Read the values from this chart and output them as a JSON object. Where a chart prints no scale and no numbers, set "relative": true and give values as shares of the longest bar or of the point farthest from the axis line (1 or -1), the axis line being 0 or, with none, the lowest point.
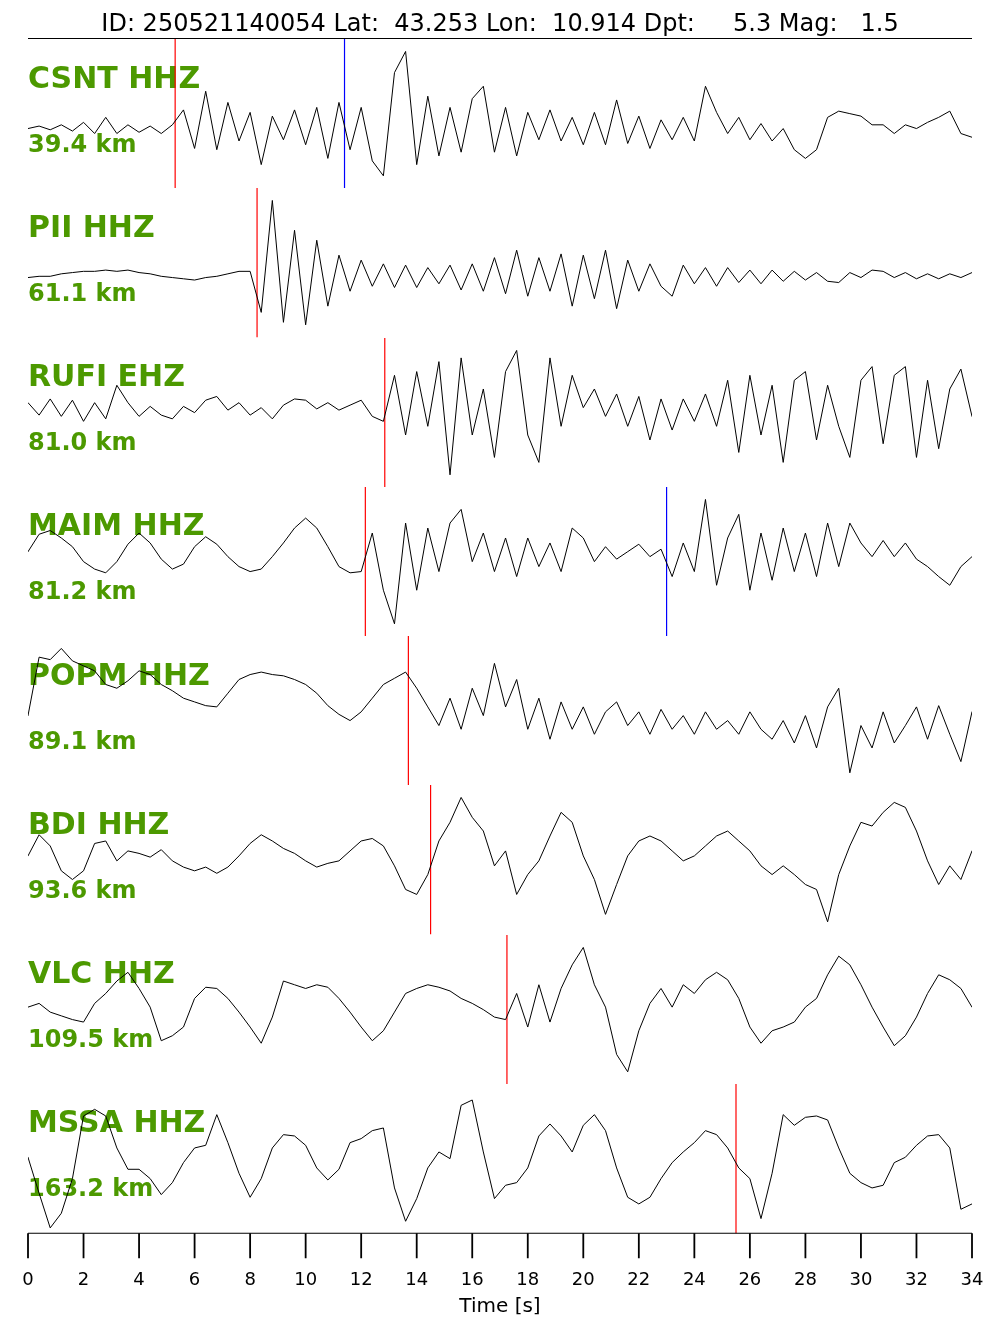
{
  "chart_data": [
    {
      "type": "line",
      "title": "ID: 250521140054 Lat:  43.253 Lon:  10.914 Dpt:     5.3 Mag:   1.5",
      "relative": true,
      "xlim": [
        0,
        34
      ],
      "tick_labels": false,
      "annotations": [
        "CSNT HHZ",
        "39.4 km"
      ],
      "ref_lines": [
        {
          "axis": "x",
          "value": 5.3,
          "color": "#ff0000"
        },
        {
          "axis": "x",
          "value": 11.4,
          "color": "#0000ff"
        }
      ],
      "x": [
        0,
        0.4,
        0.8,
        1.2,
        1.6,
        2,
        2.4,
        2.8,
        3.2,
        3.6,
        4,
        4.4,
        4.8,
        5.2,
        5.6,
        6,
        6.4,
        6.8,
        7.2,
        7.6,
        8,
        8.4,
        8.8,
        9.2,
        9.6,
        10,
        10.4,
        10.8,
        11.2,
        11.6,
        12,
        12.4,
        12.8,
        13.2,
        13.6,
        14,
        14.4,
        14.8,
        15.2,
        15.6,
        16,
        16.4,
        16.8,
        17.2,
        17.6,
        18,
        18.4,
        18.8,
        19.2,
        19.6,
        20,
        20.4,
        20.8,
        21.2,
        21.6,
        22,
        22.4,
        22.8,
        23.2,
        23.6,
        24,
        24.4,
        24.8,
        25.2,
        25.6,
        26,
        26.4,
        26.8,
        27.2,
        27.6,
        28,
        28.4,
        28.8,
        29.2,
        29.6,
        30,
        30.4,
        30.8,
        31.2,
        31.6,
        32,
        32.4,
        32.8,
        33.2,
        33.6,
        34
      ],
      "series": [
        {
          "color": "#000000",
          "values": [
            0.38,
            0.4,
            0.37,
            0.41,
            0.36,
            0.43,
            0.34,
            0.47,
            0.34,
            0.41,
            0.35,
            0.4,
            0.34,
            0.41,
            0.53,
            0.22,
            0.68,
            0.21,
            0.59,
            0.28,
            0.51,
            0.09,
            0.48,
            0.29,
            0.53,
            0.25,
            0.55,
            0.14,
            0.59,
            0.21,
            0.55,
            0.12,
            0,
            0.83,
            1,
            0.09,
            0.64,
            0.16,
            0.55,
            0.19,
            0.62,
            0.72,
            0.19,
            0.55,
            0.16,
            0.51,
            0.29,
            0.53,
            0.28,
            0.47,
            0.25,
            0.51,
            0.25,
            0.61,
            0.26,
            0.48,
            0.22,
            0.45,
            0.29,
            0.47,
            0.28,
            0.72,
            0.51,
            0.34,
            0.47,
            0.29,
            0.42,
            0.28,
            0.38,
            0.21,
            0.14,
            0.21,
            0.47,
            0.52,
            0.5,
            0.48,
            0.41,
            0.41,
            0.34,
            0.41,
            0.38,
            0.43,
            0.47,
            0.52,
            0.34,
            0.31
          ]
        }
      ]
    },
    {
      "type": "line",
      "relative": true,
      "xlim": [
        0,
        34
      ],
      "tick_labels": false,
      "annotations": [
        "PII HHZ",
        "61.1 km"
      ],
      "ref_lines": [
        {
          "axis": "x",
          "value": 8.25,
          "color": "#ff0000"
        }
      ],
      "x": [
        0,
        0.4,
        0.8,
        1.2,
        1.6,
        2,
        2.4,
        2.8,
        3.2,
        3.6,
        4,
        4.4,
        4.8,
        5.2,
        5.6,
        6,
        6.4,
        6.8,
        7.2,
        7.6,
        8,
        8.4,
        8.8,
        9.2,
        9.6,
        10,
        10.4,
        10.8,
        11.2,
        11.6,
        12,
        12.4,
        12.8,
        13.2,
        13.6,
        14,
        14.4,
        14.8,
        15.2,
        15.6,
        16,
        16.4,
        16.8,
        17.2,
        17.6,
        18,
        18.4,
        18.8,
        19.2,
        19.6,
        20,
        20.4,
        20.8,
        21.2,
        21.6,
        22,
        22.4,
        22.8,
        23.2,
        23.6,
        24,
        24.4,
        24.8,
        25.2,
        25.6,
        26,
        26.4,
        26.8,
        27.2,
        27.6,
        28,
        28.4,
        28.8,
        29.2,
        29.6,
        30,
        30.4,
        30.8,
        31.2,
        31.6,
        32,
        32.4,
        32.8,
        33.2,
        33.6,
        34
      ],
      "series": [
        {
          "color": "#000000",
          "values": [
            0.38,
            0.39,
            0.39,
            0.41,
            0.42,
            0.43,
            0.43,
            0.44,
            0.43,
            0.44,
            0.42,
            0.41,
            0.39,
            0.38,
            0.37,
            0.36,
            0.38,
            0.39,
            0.41,
            0.43,
            0.43,
            0.1,
            1,
            0.02,
            0.76,
            0,
            0.68,
            0.15,
            0.56,
            0.27,
            0.52,
            0.31,
            0.49,
            0.3,
            0.48,
            0.3,
            0.46,
            0.33,
            0.48,
            0.28,
            0.49,
            0.27,
            0.54,
            0.25,
            0.6,
            0.23,
            0.54,
            0.27,
            0.57,
            0.15,
            0.56,
            0.21,
            0.6,
            0.13,
            0.52,
            0.27,
            0.49,
            0.31,
            0.23,
            0.48,
            0.33,
            0.46,
            0.31,
            0.46,
            0.34,
            0.44,
            0.33,
            0.44,
            0.35,
            0.43,
            0.36,
            0.42,
            0.35,
            0.34,
            0.42,
            0.38,
            0.44,
            0.43,
            0.38,
            0.42,
            0.37,
            0.41,
            0.37,
            0.41,
            0.38,
            0.42
          ]
        }
      ]
    },
    {
      "type": "line",
      "relative": true,
      "xlim": [
        0,
        34
      ],
      "tick_labels": false,
      "annotations": [
        "RUFI EHZ",
        "81.0 km"
      ],
      "ref_lines": [
        {
          "axis": "x",
          "value": 12.85,
          "color": "#ff0000"
        }
      ],
      "x": [
        0,
        0.4,
        0.8,
        1.2,
        1.6,
        2,
        2.4,
        2.8,
        3.2,
        3.6,
        4,
        4.4,
        4.8,
        5.2,
        5.6,
        6,
        6.4,
        6.8,
        7.2,
        7.6,
        8,
        8.4,
        8.8,
        9.2,
        9.6,
        10,
        10.4,
        10.8,
        11.2,
        11.6,
        12,
        12.4,
        12.8,
        13.2,
        13.6,
        14,
        14.4,
        14.8,
        15.2,
        15.6,
        16,
        16.4,
        16.8,
        17.2,
        17.6,
        18,
        18.4,
        18.8,
        19.2,
        19.6,
        20,
        20.4,
        20.8,
        21.2,
        21.6,
        22,
        22.4,
        22.8,
        23.2,
        23.6,
        24,
        24.4,
        24.8,
        25.2,
        25.6,
        26,
        26.4,
        26.8,
        27.2,
        27.6,
        28,
        28.4,
        28.8,
        29.2,
        29.6,
        30,
        30.4,
        30.8,
        31.2,
        31.6,
        32,
        32.4,
        32.8,
        33.2,
        33.6,
        34
      ],
      "series": [
        {
          "color": "#000000",
          "values": [
            0.58,
            0.48,
            0.61,
            0.47,
            0.6,
            0.43,
            0.58,
            0.45,
            0.72,
            0.58,
            0.47,
            0.55,
            0.48,
            0.45,
            0.55,
            0.5,
            0.6,
            0.63,
            0.52,
            0.58,
            0.48,
            0.54,
            0.45,
            0.56,
            0.61,
            0.6,
            0.53,
            0.58,
            0.52,
            0.56,
            0.6,
            0.47,
            0.43,
            0.8,
            0.32,
            0.83,
            0.39,
            0.91,
            0,
            0.94,
            0.32,
            0.69,
            0.14,
            0.83,
            1,
            0.32,
            0.1,
            0.94,
            0.39,
            0.8,
            0.54,
            0.69,
            0.47,
            0.65,
            0.39,
            0.63,
            0.28,
            0.61,
            0.36,
            0.61,
            0.43,
            0.65,
            0.39,
            0.76,
            0.18,
            0.8,
            0.32,
            0.72,
            0.1,
            0.76,
            0.83,
            0.28,
            0.72,
            0.39,
            0.14,
            0.76,
            0.87,
            0.25,
            0.8,
            0.87,
            0.14,
            0.76,
            0.21,
            0.69,
            0.85,
            0.47
          ]
        }
      ]
    },
    {
      "type": "line",
      "relative": true,
      "xlim": [
        0,
        34
      ],
      "tick_labels": false,
      "annotations": [
        "MAIM HHZ",
        "81.2 km"
      ],
      "ref_lines": [
        {
          "axis": "x",
          "value": 12.15,
          "color": "#ff0000"
        },
        {
          "axis": "x",
          "value": 23,
          "color": "#0000ff"
        }
      ],
      "x": [
        0,
        0.4,
        0.8,
        1.2,
        1.6,
        2,
        2.4,
        2.8,
        3.2,
        3.6,
        4,
        4.4,
        4.8,
        5.2,
        5.6,
        6,
        6.4,
        6.8,
        7.2,
        7.6,
        8,
        8.4,
        8.8,
        9.2,
        9.6,
        10,
        10.4,
        10.8,
        11.2,
        11.6,
        12,
        12.4,
        12.8,
        13.2,
        13.6,
        14,
        14.4,
        14.8,
        15.2,
        15.6,
        16,
        16.4,
        16.8,
        17.2,
        17.6,
        18,
        18.4,
        18.8,
        19.2,
        19.6,
        20,
        20.4,
        20.8,
        21.2,
        21.6,
        22,
        22.4,
        22.8,
        23.2,
        23.6,
        24,
        24.4,
        24.8,
        25.2,
        25.6,
        26,
        26.4,
        26.8,
        27.2,
        27.6,
        28,
        28.4,
        28.8,
        29.2,
        29.6,
        30,
        30.4,
        30.8,
        31.2,
        31.6,
        32,
        32.4,
        32.8,
        33.2,
        33.6,
        34
      ],
      "series": [
        {
          "color": "#000000",
          "values": [
            0.58,
            0.72,
            0.75,
            0.69,
            0.62,
            0.5,
            0.44,
            0.41,
            0.5,
            0.64,
            0.73,
            0.65,
            0.52,
            0.44,
            0.48,
            0.62,
            0.7,
            0.64,
            0.54,
            0.46,
            0.42,
            0.44,
            0.54,
            0.65,
            0.77,
            0.85,
            0.77,
            0.62,
            0.46,
            0.41,
            0.42,
            0.73,
            0.27,
            0,
            0.81,
            0.27,
            0.77,
            0.42,
            0.81,
            0.92,
            0.5,
            0.73,
            0.42,
            0.69,
            0.38,
            0.69,
            0.46,
            0.65,
            0.42,
            0.77,
            0.69,
            0.5,
            0.62,
            0.52,
            0.58,
            0.64,
            0.54,
            0.6,
            0.38,
            0.65,
            0.42,
            1,
            0.31,
            0.69,
            0.88,
            0.27,
            0.73,
            0.35,
            0.77,
            0.42,
            0.73,
            0.38,
            0.81,
            0.46,
            0.81,
            0.65,
            0.54,
            0.67,
            0.54,
            0.65,
            0.52,
            0.46,
            0.38,
            0.31,
            0.46,
            0.54
          ]
        }
      ]
    },
    {
      "type": "line",
      "relative": true,
      "xlim": [
        0,
        34
      ],
      "tick_labels": false,
      "annotations": [
        "POPM HHZ",
        "89.1 km"
      ],
      "ref_lines": [
        {
          "axis": "x",
          "value": 13.7,
          "color": "#ff0000"
        }
      ],
      "x": [
        0,
        0.4,
        0.8,
        1.2,
        1.6,
        2,
        2.4,
        2.8,
        3.2,
        3.6,
        4,
        4.4,
        4.8,
        5.2,
        5.6,
        6,
        6.4,
        6.8,
        7.2,
        7.6,
        8,
        8.4,
        8.8,
        9.2,
        9.6,
        10,
        10.4,
        10.8,
        11.2,
        11.6,
        12,
        12.4,
        12.8,
        13.2,
        13.6,
        14,
        14.4,
        14.8,
        15.2,
        15.6,
        16,
        16.4,
        16.8,
        17.2,
        17.6,
        18,
        18.4,
        18.8,
        19.2,
        19.6,
        20,
        20.4,
        20.8,
        21.2,
        21.6,
        22,
        22.4,
        22.8,
        23.2,
        23.6,
        24,
        24.4,
        24.8,
        25.2,
        25.6,
        26,
        26.4,
        26.8,
        27.2,
        27.6,
        28,
        28.4,
        28.8,
        29.2,
        29.6,
        30,
        30.4,
        30.8,
        31.2,
        31.6,
        32,
        32.4,
        32.8,
        33.2,
        33.6,
        34
      ],
      "series": [
        {
          "color": "#000000",
          "values": [
            0.46,
            0.93,
            0.91,
            1,
            0.9,
            0.86,
            0.82,
            0.71,
            0.68,
            0.74,
            0.82,
            0.79,
            0.71,
            0.66,
            0.6,
            0.57,
            0.54,
            0.53,
            0.64,
            0.75,
            0.79,
            0.81,
            0.79,
            0.78,
            0.75,
            0.71,
            0.64,
            0.54,
            0.47,
            0.42,
            0.49,
            0.6,
            0.71,
            0.76,
            0.81,
            0.68,
            0.53,
            0.38,
            0.6,
            0.35,
            0.68,
            0.46,
            0.88,
            0.53,
            0.75,
            0.35,
            0.6,
            0.27,
            0.57,
            0.35,
            0.53,
            0.31,
            0.49,
            0.57,
            0.38,
            0.49,
            0.31,
            0.51,
            0.35,
            0.46,
            0.31,
            0.49,
            0.35,
            0.42,
            0.31,
            0.49,
            0.35,
            0.27,
            0.42,
            0.24,
            0.46,
            0.2,
            0.53,
            0.68,
            0,
            0.38,
            0.2,
            0.49,
            0.24,
            0.38,
            0.53,
            0.27,
            0.54,
            0.31,
            0.09,
            0.49
          ]
        }
      ]
    },
    {
      "type": "line",
      "relative": true,
      "xlim": [
        0,
        34
      ],
      "tick_labels": false,
      "annotations": [
        "BDI HHZ",
        "93.6 km"
      ],
      "ref_lines": [
        {
          "axis": "x",
          "value": 14.5,
          "color": "#ff0000"
        }
      ],
      "x": [
        0,
        0.4,
        0.8,
        1.2,
        1.6,
        2,
        2.4,
        2.8,
        3.2,
        3.6,
        4,
        4.4,
        4.8,
        5.2,
        5.6,
        6,
        6.4,
        6.8,
        7.2,
        7.6,
        8,
        8.4,
        8.8,
        9.2,
        9.6,
        10,
        10.4,
        10.8,
        11.2,
        11.6,
        12,
        12.4,
        12.8,
        13.2,
        13.6,
        14,
        14.4,
        14.8,
        15.2,
        15.6,
        16,
        16.4,
        16.8,
        17.2,
        17.6,
        18,
        18.4,
        18.8,
        19.2,
        19.6,
        20,
        20.4,
        20.8,
        21.2,
        21.6,
        22,
        22.4,
        22.8,
        23.2,
        23.6,
        24,
        24.4,
        24.8,
        25.2,
        25.6,
        26,
        26.4,
        26.8,
        27.2,
        27.6,
        28,
        28.4,
        28.8,
        29.2,
        29.6,
        30,
        30.4,
        30.8,
        31.2,
        31.6,
        32,
        32.4,
        32.8,
        33.2,
        33.6,
        34
      ],
      "series": [
        {
          "color": "#000000",
          "values": [
            0.53,
            0.7,
            0.61,
            0.41,
            0.34,
            0.41,
            0.63,
            0.65,
            0.49,
            0.57,
            0.55,
            0.52,
            0.58,
            0.49,
            0.44,
            0.41,
            0.44,
            0.39,
            0.44,
            0.53,
            0.63,
            0.7,
            0.65,
            0.59,
            0.55,
            0.49,
            0.44,
            0.47,
            0.49,
            0.57,
            0.65,
            0.67,
            0.61,
            0.45,
            0.26,
            0.22,
            0.38,
            0.65,
            0.8,
            1,
            0.84,
            0.73,
            0.45,
            0.57,
            0.22,
            0.38,
            0.49,
            0.69,
            0.88,
            0.8,
            0.53,
            0.34,
            0.06,
            0.3,
            0.53,
            0.65,
            0.69,
            0.65,
            0.57,
            0.49,
            0.53,
            0.61,
            0.69,
            0.73,
            0.65,
            0.57,
            0.45,
            0.38,
            0.45,
            0.38,
            0.3,
            0.26,
            0,
            0.38,
            0.61,
            0.8,
            0.77,
            0.88,
            0.96,
            0.92,
            0.73,
            0.49,
            0.3,
            0.45,
            0.34,
            0.57
          ]
        }
      ]
    },
    {
      "type": "line",
      "relative": true,
      "xlim": [
        0,
        34
      ],
      "tick_labels": false,
      "annotations": [
        "VLC HHZ",
        "109.5 km"
      ],
      "ref_lines": [
        {
          "axis": "x",
          "value": 17.25,
          "color": "#ff0000"
        }
      ],
      "x": [
        0,
        0.4,
        0.8,
        1.2,
        1.6,
        2,
        2.4,
        2.8,
        3.2,
        3.6,
        4,
        4.4,
        4.8,
        5.2,
        5.6,
        6,
        6.4,
        6.8,
        7.2,
        7.6,
        8,
        8.4,
        8.8,
        9.2,
        9.6,
        10,
        10.4,
        10.8,
        11.2,
        11.6,
        12,
        12.4,
        12.8,
        13.2,
        13.6,
        14,
        14.4,
        14.8,
        15.2,
        15.6,
        16,
        16.4,
        16.8,
        17.2,
        17.6,
        18,
        18.4,
        18.8,
        19.2,
        19.6,
        20,
        20.4,
        20.8,
        21.2,
        21.6,
        22,
        22.4,
        22.8,
        23.2,
        23.6,
        24,
        24.4,
        24.8,
        25.2,
        25.6,
        26,
        26.4,
        26.8,
        27.2,
        27.6,
        28,
        28.4,
        28.8,
        29.2,
        29.6,
        30,
        30.4,
        30.8,
        31.2,
        31.6,
        32,
        32.4,
        32.8,
        33.2,
        33.6,
        34
      ],
      "series": [
        {
          "color": "#000000",
          "values": [
            0.52,
            0.55,
            0.48,
            0.45,
            0.42,
            0.4,
            0.55,
            0.63,
            0.73,
            0.8,
            0.67,
            0.52,
            0.25,
            0.29,
            0.36,
            0.59,
            0.68,
            0.67,
            0.59,
            0.48,
            0.36,
            0.23,
            0.44,
            0.73,
            0.7,
            0.67,
            0.7,
            0.68,
            0.59,
            0.48,
            0.36,
            0.25,
            0.33,
            0.48,
            0.63,
            0.67,
            0.7,
            0.68,
            0.65,
            0.59,
            0.55,
            0.5,
            0.44,
            0.42,
            0.63,
            0.36,
            0.7,
            0.4,
            0.67,
            0.86,
            1,
            0.7,
            0.52,
            0.14,
            0,
            0.33,
            0.55,
            0.67,
            0.52,
            0.7,
            0.63,
            0.74,
            0.8,
            0.74,
            0.59,
            0.36,
            0.23,
            0.33,
            0.36,
            0.4,
            0.52,
            0.59,
            0.78,
            0.93,
            0.86,
            0.7,
            0.52,
            0.36,
            0.21,
            0.29,
            0.44,
            0.63,
            0.78,
            0.74,
            0.67,
            0.52
          ]
        }
      ]
    },
    {
      "type": "line",
      "relative": true,
      "xlim": [
        0,
        34
      ],
      "tick_labels": "x",
      "xlabel": "Time [s]",
      "annotations": [
        "MSSA HHZ",
        "163.2 km"
      ],
      "ref_lines": [
        {
          "axis": "x",
          "value": 25.5,
          "color": "#ff0000"
        }
      ],
      "xticks": [
        0,
        2,
        4,
        6,
        8,
        10,
        12,
        14,
        16,
        18,
        20,
        22,
        24,
        26,
        28,
        30,
        32,
        34
      ],
      "x": [
        0,
        0.4,
        0.8,
        1.2,
        1.6,
        2,
        2.4,
        2.8,
        3.2,
        3.6,
        4,
        4.4,
        4.8,
        5.2,
        5.6,
        6,
        6.4,
        6.8,
        7.2,
        7.6,
        8,
        8.4,
        8.8,
        9.2,
        9.6,
        10,
        10.4,
        10.8,
        11.2,
        11.6,
        12,
        12.4,
        12.8,
        13.2,
        13.6,
        14,
        14.4,
        14.8,
        15.2,
        15.6,
        16,
        16.4,
        16.8,
        17.2,
        17.6,
        18,
        18.4,
        18.8,
        19.2,
        19.6,
        20,
        20.4,
        20.8,
        21.2,
        21.6,
        22,
        22.4,
        22.8,
        23.2,
        23.6,
        24,
        24.4,
        24.8,
        25.2,
        25.6,
        26,
        26.4,
        26.8,
        27.2,
        27.6,
        28,
        28.4,
        28.8,
        29.2,
        29.6,
        30,
        30.4,
        30.8,
        31.2,
        31.6,
        32,
        32.4,
        32.8,
        33.2,
        33.6,
        34
      ],
      "series": [
        {
          "color": "#000000",
          "values": [
            0.57,
            0.3,
            0.04,
            0.15,
            0.41,
            0.88,
            0.93,
            0.88,
            0.64,
            0.48,
            0.48,
            0.41,
            0.29,
            0.38,
            0.53,
            0.64,
            0.66,
            0.89,
            0.68,
            0.45,
            0.27,
            0.41,
            0.64,
            0.74,
            0.73,
            0.66,
            0.49,
            0.4,
            0.48,
            0.68,
            0.71,
            0.77,
            0.79,
            0.34,
            0.09,
            0.26,
            0.49,
            0.61,
            0.56,
            0.96,
            1,
            0.61,
            0.26,
            0.36,
            0.38,
            0.49,
            0.73,
            0.82,
            0.73,
            0.61,
            0.81,
            0.89,
            0.77,
            0.49,
            0.27,
            0.22,
            0.27,
            0.41,
            0.53,
            0.61,
            0.68,
            0.77,
            0.74,
            0.64,
            0.49,
            0.41,
            0.11,
            0.45,
            0.89,
            0.81,
            0.87,
            0.88,
            0.85,
            0.64,
            0.45,
            0.38,
            0.34,
            0.36,
            0.53,
            0.57,
            0.66,
            0.73,
            0.74,
            0.64,
            0.18,
            0.22
          ]
        }
      ]
    }
  ]
}
